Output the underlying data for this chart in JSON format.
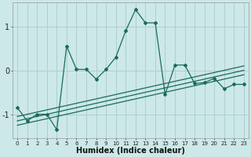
{
  "xlabel": "Humidex (Indice chaleur)",
  "bg_color": "#cce8e8",
  "grid_color": "#b0cfcf",
  "line_color": "#1a6b5a",
  "x_values": [
    0,
    1,
    2,
    3,
    4,
    5,
    6,
    7,
    8,
    9,
    10,
    11,
    12,
    13,
    14,
    15,
    16,
    17,
    18,
    19,
    20,
    21,
    22,
    23
  ],
  "main_line": [
    -0.85,
    -1.15,
    -1.0,
    -1.0,
    -1.35,
    0.55,
    0.02,
    0.02,
    -0.2,
    0.02,
    0.3,
    0.9,
    1.38,
    1.08,
    1.08,
    -0.55,
    0.12,
    0.12,
    -0.3,
    -0.28,
    -0.18,
    -0.42,
    -0.32,
    -0.32
  ],
  "reg_line1": [
    -1.05,
    -1.0,
    -0.95,
    -0.9,
    -0.85,
    -0.8,
    -0.75,
    -0.7,
    -0.65,
    -0.6,
    -0.55,
    -0.5,
    -0.45,
    -0.4,
    -0.35,
    -0.3,
    -0.25,
    -0.2,
    -0.15,
    -0.1,
    -0.05,
    0.0,
    0.05,
    0.1
  ],
  "reg_line2": [
    -1.15,
    -1.1,
    -1.05,
    -1.0,
    -0.95,
    -0.9,
    -0.85,
    -0.8,
    -0.75,
    -0.7,
    -0.65,
    -0.6,
    -0.55,
    -0.5,
    -0.45,
    -0.4,
    -0.35,
    -0.3,
    -0.25,
    -0.2,
    -0.15,
    -0.1,
    -0.05,
    0.0
  ],
  "reg_line3": [
    -1.25,
    -1.2,
    -1.15,
    -1.1,
    -1.05,
    -1.0,
    -0.95,
    -0.9,
    -0.85,
    -0.8,
    -0.75,
    -0.7,
    -0.65,
    -0.6,
    -0.55,
    -0.5,
    -0.45,
    -0.4,
    -0.35,
    -0.3,
    -0.25,
    -0.2,
    -0.15,
    -0.1
  ],
  "ylim": [
    -1.55,
    1.55
  ],
  "yticks": [
    -1,
    0,
    1
  ],
  "xlim": [
    -0.5,
    23.5
  ]
}
